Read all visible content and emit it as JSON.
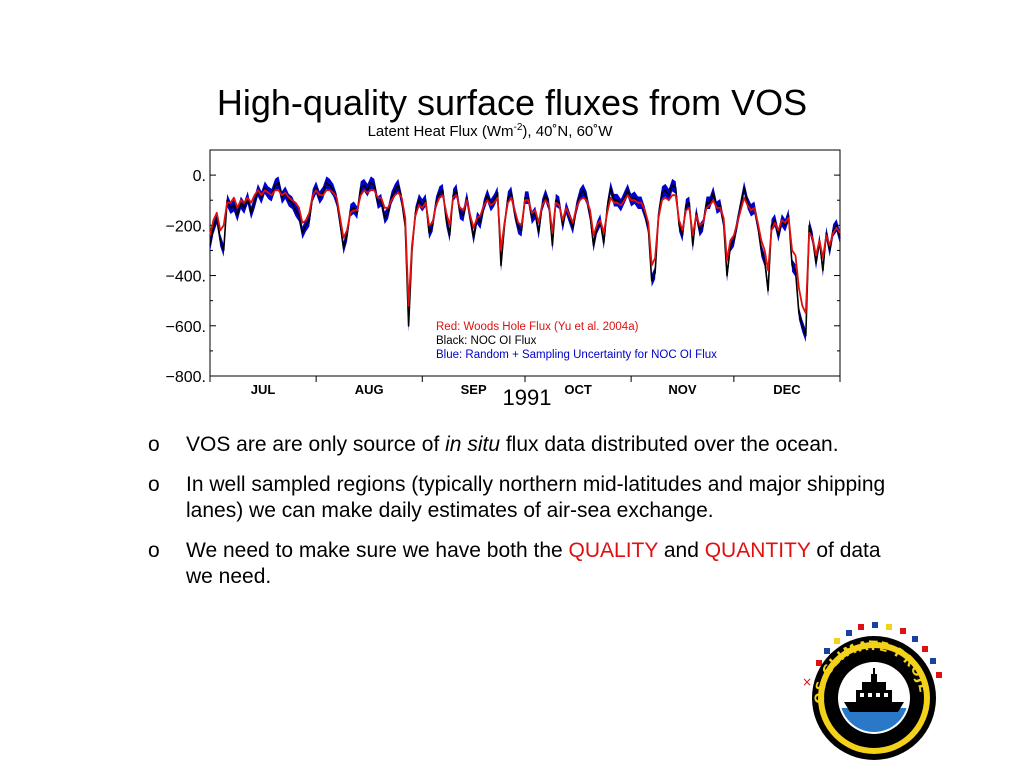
{
  "slide": {
    "title": "High-quality surface fluxes from VOS"
  },
  "chart_data": {
    "type": "line",
    "title": "Latent Heat Flux (Wm",
    "title_sup": "-2",
    "title_tail": "),  40˚N, 60˚W",
    "xlabel": "1991",
    "ylabel": "",
    "ylim": [
      -800,
      100
    ],
    "yticks": [
      0,
      -200,
      -400,
      -600,
      -800
    ],
    "ytick_labels": [
      "0.",
      "−200.",
      "−400.",
      "−600.",
      "−800."
    ],
    "month_labels": [
      "JUL",
      "AUG",
      "SEP",
      "OCT",
      "NOV",
      "DEC"
    ],
    "xlim": [
      0,
      184
    ],
    "month_starts": [
      0,
      31,
      62,
      92,
      123,
      153
    ],
    "legend_position": "bottom-center",
    "legend": [
      {
        "text": "Red:  Woods Hole Flux (Yu et al. 2004a)",
        "color": "#e01010"
      },
      {
        "text": "Black:  NOC OI Flux",
        "color": "#000000"
      },
      {
        "text": "Blue:  Random + Sampling Uncertainty for NOC OI Flux",
        "color": "#0000cc"
      }
    ],
    "series": [
      {
        "name": "NOC OI Flux",
        "color": "#000000",
        "band_color": "#0000cc",
        "band_halfwidth": 25,
        "values": [
          -280,
          -210,
          -170,
          -260,
          -300,
          -100,
          -130,
          -120,
          -160,
          -110,
          -130,
          -90,
          -150,
          -110,
          -60,
          -90,
          -50,
          -70,
          -80,
          -40,
          -30,
          -90,
          -70,
          -100,
          -110,
          -140,
          -160,
          -230,
          -200,
          -180,
          -80,
          -50,
          -90,
          -70,
          -30,
          -40,
          -60,
          -100,
          -190,
          -290,
          -240,
          -140,
          -130,
          -150,
          -50,
          -40,
          -60,
          -30,
          -40,
          -110,
          -100,
          -170,
          -150,
          -90,
          -60,
          -40,
          -100,
          -200,
          -600,
          -300,
          -150,
          -100,
          -120,
          -100,
          -230,
          -200,
          -110,
          -70,
          -60,
          -180,
          -240,
          -80,
          -60,
          -150,
          -160,
          -90,
          -170,
          -250,
          -170,
          -190,
          -120,
          -80,
          -120,
          -100,
          -70,
          -360,
          -200,
          -90,
          -70,
          -150,
          -210,
          -220,
          -90,
          -90,
          -170,
          -150,
          -230,
          -120,
          -80,
          -120,
          -280,
          -100,
          -110,
          -200,
          -130,
          -170,
          -210,
          -130,
          -80,
          -60,
          -90,
          -160,
          -280,
          -210,
          -180,
          -270,
          -130,
          -50,
          -100,
          -100,
          -120,
          -90,
          -60,
          -100,
          -90,
          -110,
          -110,
          -150,
          -210,
          -420,
          -390,
          -160,
          -70,
          -60,
          -80,
          -40,
          -50,
          -200,
          -240,
          -120,
          -110,
          -280,
          -150,
          -220,
          -200,
          -110,
          -110,
          -70,
          -130,
          -120,
          -190,
          -400,
          -280,
          -260,
          -190,
          -120,
          -50,
          -110,
          -140,
          -130,
          -200,
          -300,
          -340,
          -460,
          -200,
          -180,
          -240,
          -180,
          -200,
          -160,
          -360,
          -380,
          -550,
          -600,
          -640,
          -200,
          -250,
          -350,
          -260,
          -380,
          -230,
          -300,
          -220,
          -200,
          -250
        ]
      },
      {
        "name": "Woods Hole Flux (Yu et al. 2004a)",
        "color": "#e01010",
        "values": [
          -240,
          -180,
          -150,
          -220,
          -200,
          -110,
          -110,
          -90,
          -130,
          -100,
          -110,
          -90,
          -110,
          -80,
          -60,
          -80,
          -60,
          -70,
          -80,
          -60,
          -60,
          -80,
          -70,
          -90,
          -100,
          -110,
          -130,
          -190,
          -180,
          -150,
          -80,
          -60,
          -80,
          -80,
          -60,
          -60,
          -70,
          -90,
          -170,
          -250,
          -220,
          -150,
          -140,
          -140,
          -80,
          -60,
          -70,
          -60,
          -60,
          -90,
          -90,
          -130,
          -130,
          -100,
          -80,
          -70,
          -90,
          -170,
          -520,
          -280,
          -160,
          -120,
          -130,
          -110,
          -200,
          -190,
          -120,
          -90,
          -80,
          -150,
          -200,
          -90,
          -80,
          -130,
          -140,
          -100,
          -160,
          -210,
          -170,
          -160,
          -120,
          -100,
          -120,
          -110,
          -90,
          -300,
          -190,
          -110,
          -90,
          -140,
          -190,
          -200,
          -100,
          -100,
          -150,
          -140,
          -190,
          -120,
          -100,
          -120,
          -230,
          -110,
          -120,
          -180,
          -130,
          -160,
          -190,
          -130,
          -100,
          -90,
          -100,
          -140,
          -240,
          -200,
          -180,
          -230,
          -150,
          -90,
          -110,
          -110,
          -120,
          -100,
          -80,
          -100,
          -100,
          -110,
          -110,
          -140,
          -190,
          -360,
          -330,
          -170,
          -100,
          -90,
          -100,
          -80,
          -80,
          -180,
          -220,
          -140,
          -130,
          -240,
          -160,
          -200,
          -190,
          -130,
          -120,
          -100,
          -130,
          -130,
          -170,
          -340,
          -260,
          -240,
          -190,
          -140,
          -90,
          -120,
          -140,
          -130,
          -190,
          -260,
          -300,
          -380,
          -220,
          -190,
          -220,
          -180,
          -190,
          -170,
          -300,
          -320,
          -450,
          -520,
          -550,
          -230,
          -250,
          -320,
          -260,
          -330,
          -240,
          -280,
          -230,
          -210,
          -230
        ]
      }
    ]
  },
  "bullets": [
    {
      "marker": "o",
      "parts": [
        {
          "text": "VOS are are only source of ",
          "style": "normal"
        },
        {
          "text": "in situ",
          "style": "italic"
        },
        {
          "text": " flux data distributed over the ocean.",
          "style": "normal"
        }
      ]
    },
    {
      "marker": "o",
      "parts": [
        {
          "text": "In well sampled regions (typically northern mid-latitudes and major shipping lanes) we can make daily estimates of air-sea exchange.",
          "style": "normal"
        }
      ]
    },
    {
      "marker": "o",
      "parts": [
        {
          "text": "We need to make sure we have both the ",
          "style": "normal"
        },
        {
          "text": "QUALITY",
          "style": "red"
        },
        {
          "text": " and ",
          "style": "normal"
        },
        {
          "text": "QUANTITY",
          "style": "red"
        },
        {
          "text": " of data we need.",
          "style": "normal"
        }
      ]
    }
  ],
  "logo": {
    "text": "VOS CLIMATE PROJECT",
    "ring_color": "#f2d21a",
    "sea_color": "#2a78c8"
  }
}
